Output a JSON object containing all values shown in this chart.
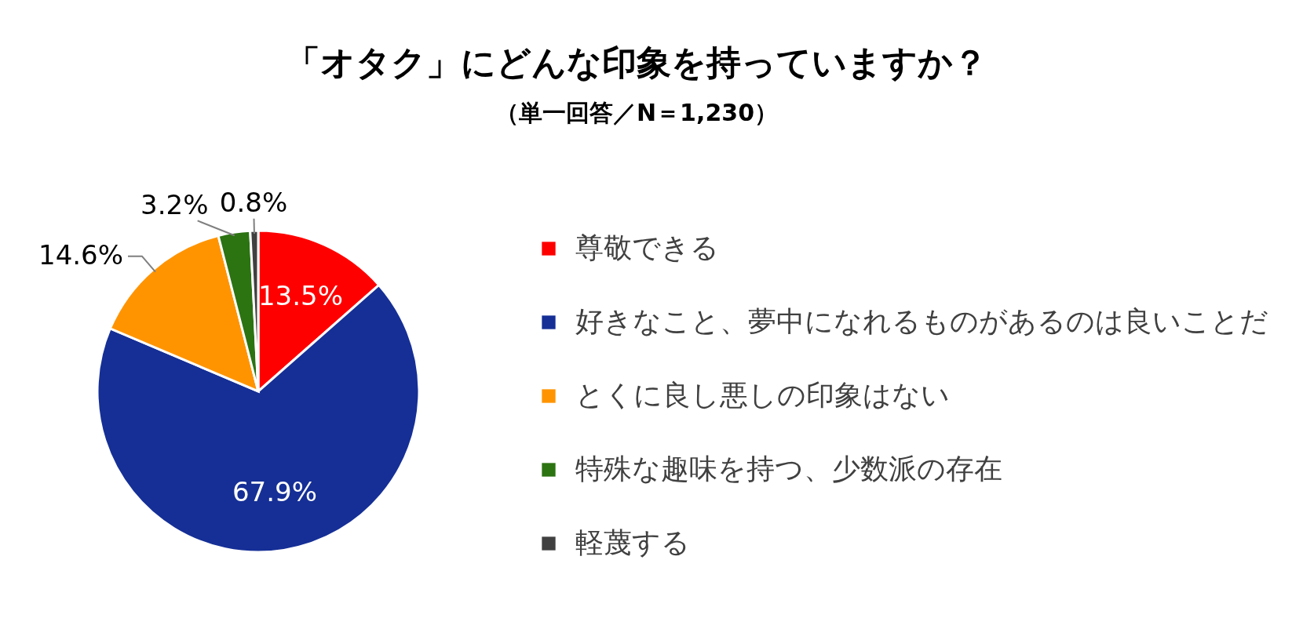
{
  "chart_data": {
    "type": "pie",
    "title": "「オタク」にどんな印象を持っていますか？",
    "subtitle": "（単一回答／N＝1,230）",
    "categories": [
      "尊敬できる",
      "好きなこと、夢中になれるものがあるのは良いことだ",
      "とくに良し悪しの印象はない",
      "特殊な趣味を持つ、少数派の存在",
      "軽蔑する"
    ],
    "values": [
      13.5,
      67.9,
      14.6,
      3.2,
      0.8
    ],
    "colors": [
      "#ff0000",
      "#152f96",
      "#ff9400",
      "#2c7312",
      "#404040"
    ],
    "value_labels": [
      "13.5%",
      "67.9%",
      "14.6%",
      "3.2%",
      "0.8%"
    ],
    "legend": "right"
  }
}
